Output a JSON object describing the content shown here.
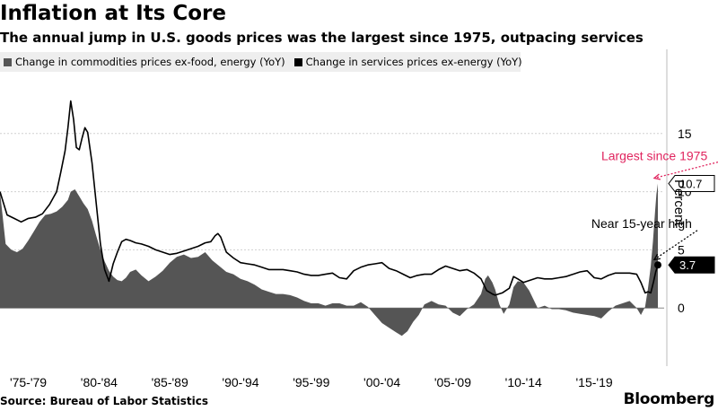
{
  "header": {
    "title": "Inflation at Its Core",
    "subtitle": "The annual jump in U.S. goods prices was the largest since 1975, outpacing services"
  },
  "legend": [
    {
      "label": "Change in commodities prices ex-food, energy (YoY)",
      "color": "#555555"
    },
    {
      "label": "Change in services prices ex-energy (YoY)",
      "color": "#000000"
    }
  ],
  "footer": {
    "source": "Source: Bureau of Labor Statistics",
    "brand": "Bloomberg"
  },
  "colors": {
    "area": "#555555",
    "line": "#000000",
    "accent": "#e0245e"
  },
  "chart_data": {
    "type": "area",
    "ylabel": "Percent",
    "ylim": [
      -5,
      20
    ],
    "yticks": [
      0,
      5,
      10,
      15
    ],
    "xlim": [
      1975.0,
      2021.5
    ],
    "xtick_labels": [
      {
        "label": "'75-'79",
        "year": 1977
      },
      {
        "label": "'80-'84",
        "year": 1982
      },
      {
        "label": "'85-'89",
        "year": 1987
      },
      {
        "label": "'90-'94",
        "year": 1992
      },
      {
        "label": "'95-'99",
        "year": 1997
      },
      {
        "label": "'00-'04",
        "year": 2002
      },
      {
        "label": "'05-'09",
        "year": 2007
      },
      {
        "label": "'10-'14",
        "year": 2012
      },
      {
        "label": "'15-'19",
        "year": 2017
      }
    ],
    "series": [
      {
        "name": "Change in commodities prices ex-food, energy (YoY)",
        "style": "area",
        "points": [
          [
            1975,
            10
          ],
          [
            1975.4,
            5.5
          ],
          [
            1975.8,
            5
          ],
          [
            1976.2,
            4.8
          ],
          [
            1976.6,
            5.1
          ],
          [
            1977,
            5.8
          ],
          [
            1977.4,
            6.6
          ],
          [
            1977.8,
            7.4
          ],
          [
            1978.2,
            8
          ],
          [
            1978.6,
            8.1
          ],
          [
            1979,
            8.3
          ],
          [
            1979.4,
            8.7
          ],
          [
            1979.8,
            9.3
          ],
          [
            1980,
            10
          ],
          [
            1980.3,
            10.2
          ],
          [
            1980.6,
            9.6
          ],
          [
            1980.9,
            9
          ],
          [
            1981.2,
            8.5
          ],
          [
            1981.5,
            7.5
          ],
          [
            1981.8,
            6.2
          ],
          [
            1982.1,
            5
          ],
          [
            1982.4,
            4
          ],
          [
            1982.7,
            3.2
          ],
          [
            1983,
            2.7
          ],
          [
            1983.3,
            2.4
          ],
          [
            1983.6,
            2.3
          ],
          [
            1983.9,
            2.6
          ],
          [
            1984.2,
            3.1
          ],
          [
            1984.6,
            3.3
          ],
          [
            1985,
            2.8
          ],
          [
            1985.5,
            2.3
          ],
          [
            1986,
            2.7
          ],
          [
            1986.5,
            3.2
          ],
          [
            1987,
            3.9
          ],
          [
            1987.5,
            4.4
          ],
          [
            1988,
            4.6
          ],
          [
            1988.5,
            4.3
          ],
          [
            1989,
            4.4
          ],
          [
            1989.5,
            4.8
          ],
          [
            1990,
            4.1
          ],
          [
            1990.5,
            3.6
          ],
          [
            1991,
            3.1
          ],
          [
            1991.5,
            2.9
          ],
          [
            1992,
            2.5
          ],
          [
            1992.5,
            2.3
          ],
          [
            1993,
            2
          ],
          [
            1993.5,
            1.6
          ],
          [
            1994,
            1.4
          ],
          [
            1994.5,
            1.2
          ],
          [
            1995,
            1.2
          ],
          [
            1995.5,
            1.1
          ],
          [
            1996,
            0.9
          ],
          [
            1996.5,
            0.6
          ],
          [
            1997,
            0.4
          ],
          [
            1997.5,
            0.4
          ],
          [
            1998,
            0.2
          ],
          [
            1998.5,
            0.4
          ],
          [
            1999,
            0.4
          ],
          [
            1999.5,
            0.2
          ],
          [
            2000,
            0.2
          ],
          [
            2000.5,
            0.5
          ],
          [
            2001,
            0.1
          ],
          [
            2001.5,
            -0.6
          ],
          [
            2002,
            -1.3
          ],
          [
            2002.5,
            -1.7
          ],
          [
            2003,
            -2.1
          ],
          [
            2003.4,
            -2.4
          ],
          [
            2003.8,
            -2
          ],
          [
            2004.2,
            -1.2
          ],
          [
            2004.6,
            -0.6
          ],
          [
            2005,
            0.3
          ],
          [
            2005.5,
            0.6
          ],
          [
            2006,
            0.3
          ],
          [
            2006.5,
            0.2
          ],
          [
            2007,
            -0.4
          ],
          [
            2007.5,
            -0.7
          ],
          [
            2008,
            -0.1
          ],
          [
            2008.5,
            0.3
          ],
          [
            2009,
            1.2
          ],
          [
            2009.3,
            2.5
          ],
          [
            2009.5,
            2.8
          ],
          [
            2009.8,
            2.2
          ],
          [
            2010,
            1.6
          ],
          [
            2010.3,
            0.3
          ],
          [
            2010.6,
            -0.5
          ],
          [
            2011,
            0.3
          ],
          [
            2011.3,
            1.8
          ],
          [
            2011.6,
            2.3
          ],
          [
            2012,
            2.2
          ],
          [
            2012.4,
            1.5
          ],
          [
            2012.8,
            0.5
          ],
          [
            2013,
            0
          ],
          [
            2013.5,
            0.2
          ],
          [
            2014,
            -0.1
          ],
          [
            2014.5,
            -0.1
          ],
          [
            2015,
            -0.2
          ],
          [
            2015.5,
            -0.4
          ],
          [
            2016,
            -0.5
          ],
          [
            2016.5,
            -0.6
          ],
          [
            2017,
            -0.7
          ],
          [
            2017.5,
            -0.9
          ],
          [
            2018,
            -0.3
          ],
          [
            2018.5,
            0.2
          ],
          [
            2019,
            0.4
          ],
          [
            2019.5,
            0.6
          ],
          [
            2020,
            0
          ],
          [
            2020.3,
            -0.6
          ],
          [
            2020.6,
            0.1
          ],
          [
            2020.8,
            1.7
          ],
          [
            2021,
            3.6
          ],
          [
            2021.15,
            5.7
          ],
          [
            2021.3,
            8.2
          ],
          [
            2021.4,
            9.8
          ],
          [
            2021.5,
            10.7
          ]
        ]
      },
      {
        "name": "Change in services prices ex-energy (YoY)",
        "style": "line",
        "points": [
          [
            1975,
            10
          ],
          [
            1975.5,
            8
          ],
          [
            1976,
            7.7
          ],
          [
            1976.5,
            7.4
          ],
          [
            1977,
            7.7
          ],
          [
            1977.5,
            7.8
          ],
          [
            1978,
            8.1
          ],
          [
            1978.5,
            8.9
          ],
          [
            1979,
            10
          ],
          [
            1979.3,
            11.7
          ],
          [
            1979.6,
            13.5
          ],
          [
            1979.8,
            15.5
          ],
          [
            1980,
            17.8
          ],
          [
            1980.2,
            16.2
          ],
          [
            1980.4,
            13.8
          ],
          [
            1980.6,
            13.6
          ],
          [
            1980.8,
            14.6
          ],
          [
            1981,
            15.5
          ],
          [
            1981.2,
            15.1
          ],
          [
            1981.5,
            12.5
          ],
          [
            1981.8,
            9
          ],
          [
            1982.1,
            5.5
          ],
          [
            1982.4,
            3.3
          ],
          [
            1982.7,
            2.3
          ],
          [
            1983,
            3.8
          ],
          [
            1983.3,
            4.8
          ],
          [
            1983.6,
            5.7
          ],
          [
            1983.9,
            5.9
          ],
          [
            1984.2,
            5.8
          ],
          [
            1984.6,
            5.6
          ],
          [
            1985,
            5.5
          ],
          [
            1985.5,
            5.3
          ],
          [
            1986,
            5
          ],
          [
            1986.5,
            4.8
          ],
          [
            1987,
            4.6
          ],
          [
            1987.5,
            4.7
          ],
          [
            1988,
            4.9
          ],
          [
            1988.5,
            5.1
          ],
          [
            1989,
            5.3
          ],
          [
            1989.5,
            5.6
          ],
          [
            1989.9,
            5.7
          ],
          [
            1990.2,
            6.2
          ],
          [
            1990.4,
            6.4
          ],
          [
            1990.6,
            6.1
          ],
          [
            1991,
            4.8
          ],
          [
            1991.5,
            4.3
          ],
          [
            1992,
            3.9
          ],
          [
            1992.5,
            3.8
          ],
          [
            1993,
            3.7
          ],
          [
            1993.5,
            3.5
          ],
          [
            1994,
            3.3
          ],
          [
            1994.5,
            3.3
          ],
          [
            1995,
            3.3
          ],
          [
            1995.5,
            3.2
          ],
          [
            1996,
            3.1
          ],
          [
            1996.5,
            2.9
          ],
          [
            1997,
            2.8
          ],
          [
            1997.5,
            2.8
          ],
          [
            1998,
            2.9
          ],
          [
            1998.5,
            3
          ],
          [
            1999,
            2.6
          ],
          [
            1999.5,
            2.5
          ],
          [
            2000,
            3.2
          ],
          [
            2000.5,
            3.5
          ],
          [
            2001,
            3.7
          ],
          [
            2001.5,
            3.8
          ],
          [
            2002,
            3.9
          ],
          [
            2002.5,
            3.4
          ],
          [
            2003,
            3.2
          ],
          [
            2003.5,
            2.9
          ],
          [
            2004,
            2.6
          ],
          [
            2004.5,
            2.8
          ],
          [
            2005,
            2.9
          ],
          [
            2005.5,
            2.9
          ],
          [
            2006,
            3.3
          ],
          [
            2006.5,
            3.6
          ],
          [
            2007,
            3.4
          ],
          [
            2007.5,
            3.2
          ],
          [
            2008,
            3.3
          ],
          [
            2008.5,
            3
          ],
          [
            2009,
            2.5
          ],
          [
            2009.4,
            1.5
          ],
          [
            2009.8,
            1.2
          ],
          [
            2010,
            1.1
          ],
          [
            2010.5,
            1.3
          ],
          [
            2011,
            1.7
          ],
          [
            2011.3,
            2.7
          ],
          [
            2011.6,
            2.5
          ],
          [
            2012,
            2.2
          ],
          [
            2012.5,
            2.4
          ],
          [
            2013,
            2.6
          ],
          [
            2013.5,
            2.5
          ],
          [
            2014,
            2.5
          ],
          [
            2014.5,
            2.6
          ],
          [
            2015,
            2.7
          ],
          [
            2015.5,
            2.9
          ],
          [
            2016,
            3.1
          ],
          [
            2016.5,
            3.2
          ],
          [
            2017,
            2.6
          ],
          [
            2017.5,
            2.5
          ],
          [
            2018,
            2.8
          ],
          [
            2018.5,
            3
          ],
          [
            2019,
            3
          ],
          [
            2019.5,
            3
          ],
          [
            2020,
            2.9
          ],
          [
            2020.3,
            2.2
          ],
          [
            2020.6,
            1.3
          ],
          [
            2020.8,
            1.4
          ],
          [
            2021,
            1.3
          ],
          [
            2021.2,
            2.3
          ],
          [
            2021.35,
            3.1
          ],
          [
            2021.5,
            3.7
          ]
        ]
      }
    ],
    "annotations": [
      {
        "text": "Largest since 1975",
        "color": "#e0245e",
        "target": [
          2021.5,
          10.7
        ],
        "at": [
          2017.5,
          12.7
        ]
      },
      {
        "text": "Near 15-year high",
        "color": "#000000",
        "target": [
          2021.5,
          3.7
        ],
        "at": [
          2016.8,
          6.9
        ]
      }
    ],
    "value_labels": [
      {
        "text": "10.7",
        "value": 10.7,
        "style": "outline"
      },
      {
        "text": "3.7",
        "value": 3.7,
        "style": "filled"
      }
    ]
  }
}
